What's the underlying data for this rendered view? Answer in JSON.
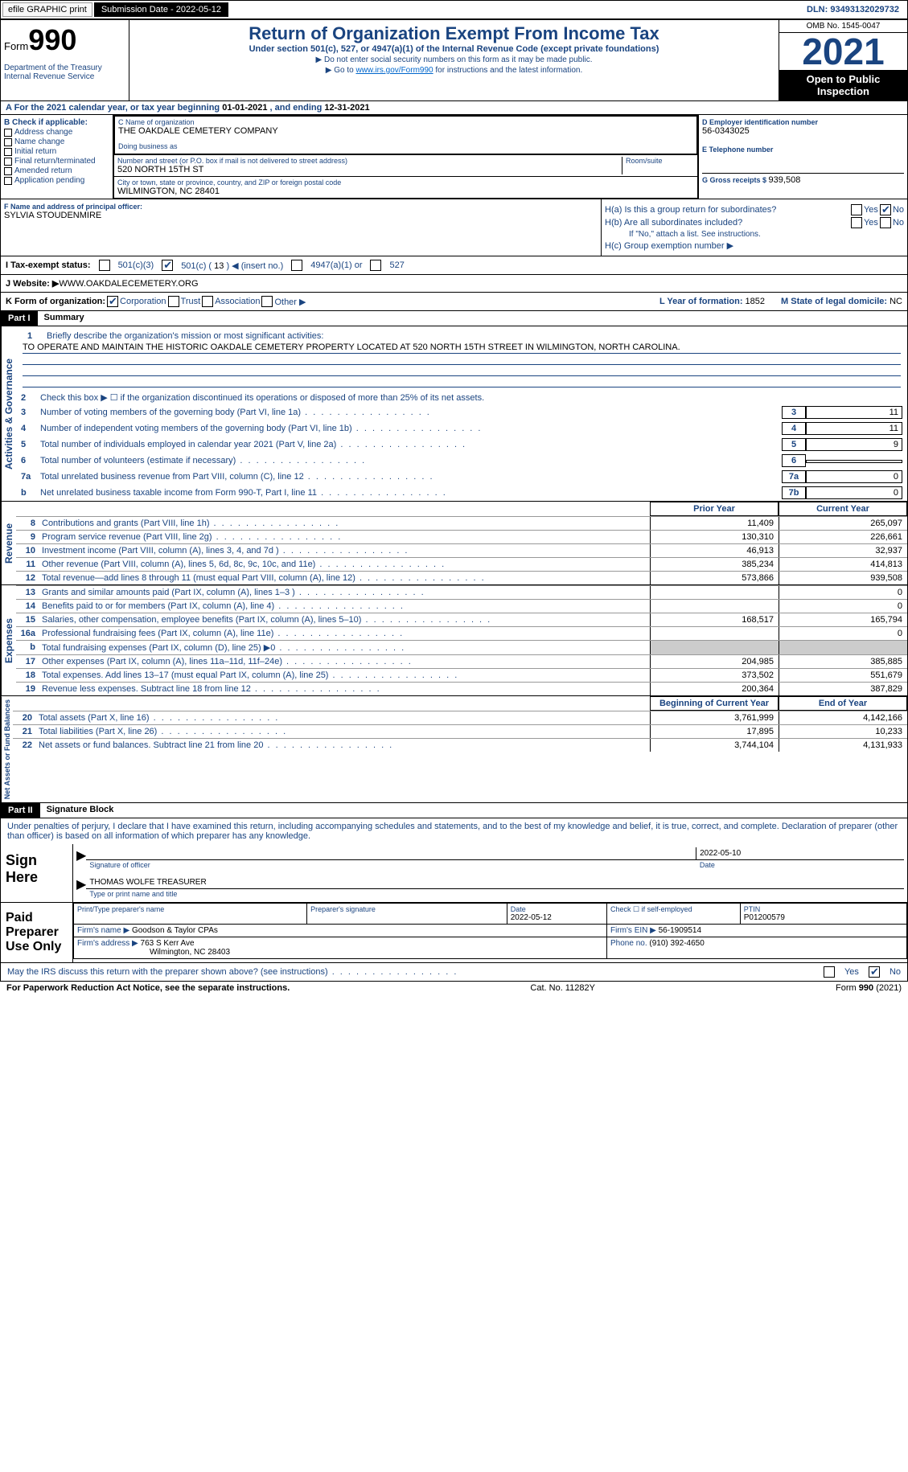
{
  "topbar": {
    "efile": "efile GRAPHIC print",
    "sub_label": "Submission Date - ",
    "sub_date": "2022-05-12",
    "dln_label": "DLN: ",
    "dln": "93493132029732"
  },
  "header": {
    "form_prefix": "Form",
    "form_num": "990",
    "dept": "Department of the Treasury\nInternal Revenue Service",
    "title": "Return of Organization Exempt From Income Tax",
    "subtitle": "Under section 501(c), 527, or 4947(a)(1) of the Internal Revenue Code (except private foundations)",
    "note1": "▶ Do not enter social security numbers on this form as it may be made public.",
    "note2_pre": "▶ Go to ",
    "note2_link": "www.irs.gov/Form990",
    "note2_post": " for instructions and the latest information.",
    "omb": "OMB No. 1545-0047",
    "year": "2021",
    "inspection": "Open to Public Inspection"
  },
  "period": {
    "text_a": "A For the 2021 calendar year, or tax year beginning ",
    "begin": "01-01-2021",
    "text_b": " , and ending ",
    "end": "12-31-2021"
  },
  "sectionB": {
    "hdr": "B Check if applicable:",
    "items": [
      "Address change",
      "Name change",
      "Initial return",
      "Final return/terminated",
      "Amended return",
      "Application pending"
    ]
  },
  "sectionC": {
    "name_label": "C Name of organization",
    "name": "THE OAKDALE CEMETERY COMPANY",
    "dba_label": "Doing business as",
    "addr_label": "Number and street (or P.O. box if mail is not delivered to street address)",
    "room_label": "Room/suite",
    "addr": "520 NORTH 15TH ST",
    "city_label": "City or town, state or province, country, and ZIP or foreign postal code",
    "city": "WILMINGTON, NC  28401"
  },
  "sectionD": {
    "ein_label": "D Employer identification number",
    "ein": "56-0343025",
    "tel_label": "E Telephone number",
    "gross_label": "G Gross receipts $ ",
    "gross": "939,508"
  },
  "sectionF": {
    "label": "F  Name and address of principal officer:",
    "name": "SYLVIA STOUDENMIRE"
  },
  "sectionH": {
    "a_label": "H(a)  Is this a group return for subordinates?",
    "b_label": "H(b)  Are all subordinates included?",
    "note": "If \"No,\" attach a list. See instructions.",
    "c_label": "H(c)  Group exemption number ▶",
    "yes": "Yes",
    "no": "No"
  },
  "sectionI": {
    "label": "I    Tax-exempt status:",
    "opt1": "501(c)(3)",
    "opt2_pre": "501(c) ( ",
    "opt2_num": "13",
    "opt2_post": " ) ◀ (insert no.)",
    "opt3": "4947(a)(1) or",
    "opt4": "527"
  },
  "sectionJ": {
    "label": "J    Website: ▶",
    "url": "  WWW.OAKDALECEMETERY.ORG"
  },
  "sectionK": {
    "label": "K Form of organization:",
    "opts": [
      "Corporation",
      "Trust",
      "Association",
      "Other ▶"
    ],
    "l_label": "L Year of formation: ",
    "l_val": "1852",
    "m_label": "M State of legal domicile: ",
    "m_val": "NC"
  },
  "part1": {
    "header": "Part I",
    "title": "Summary",
    "side1": "Activities & Governance",
    "q1_label": "Briefly describe the organization's mission or most significant activities:",
    "q1_text": "TO OPERATE AND MAINTAIN THE HISTORIC OAKDALE CEMETERY PROPERTY LOCATED AT 520 NORTH 15TH STREET IN WILMINGTON, NORTH CAROLINA.",
    "q2": "Check this box ▶ ☐  if the organization discontinued its operations or disposed of more than 25% of its net assets.",
    "lines": [
      {
        "n": "3",
        "t": "Number of voting members of the governing body (Part VI, line 1a)",
        "b": "3",
        "v": "11"
      },
      {
        "n": "4",
        "t": "Number of independent voting members of the governing body (Part VI, line 1b)",
        "b": "4",
        "v": "11"
      },
      {
        "n": "5",
        "t": "Total number of individuals employed in calendar year 2021 (Part V, line 2a)",
        "b": "5",
        "v": "9"
      },
      {
        "n": "6",
        "t": "Total number of volunteers (estimate if necessary)",
        "b": "6",
        "v": ""
      },
      {
        "n": "7a",
        "t": "Total unrelated business revenue from Part VIII, column (C), line 12",
        "b": "7a",
        "v": "0"
      },
      {
        "n": "b",
        "t": "Net unrelated business taxable income from Form 990-T, Part I, line 11",
        "b": "7b",
        "v": "0"
      }
    ],
    "colhdr_prior": "Prior Year",
    "colhdr_current": "Current Year",
    "side2": "Revenue",
    "revenue": [
      {
        "n": "8",
        "t": "Contributions and grants (Part VIII, line 1h)",
        "p": "11,409",
        "c": "265,097"
      },
      {
        "n": "9",
        "t": "Program service revenue (Part VIII, line 2g)",
        "p": "130,310",
        "c": "226,661"
      },
      {
        "n": "10",
        "t": "Investment income (Part VIII, column (A), lines 3, 4, and 7d )",
        "p": "46,913",
        "c": "32,937"
      },
      {
        "n": "11",
        "t": "Other revenue (Part VIII, column (A), lines 5, 6d, 8c, 9c, 10c, and 11e)",
        "p": "385,234",
        "c": "414,813"
      },
      {
        "n": "12",
        "t": "Total revenue—add lines 8 through 11 (must equal Part VIII, column (A), line 12)",
        "p": "573,866",
        "c": "939,508"
      }
    ],
    "side3": "Expenses",
    "expenses": [
      {
        "n": "13",
        "t": "Grants and similar amounts paid (Part IX, column (A), lines 1–3 )",
        "p": "",
        "c": "0"
      },
      {
        "n": "14",
        "t": "Benefits paid to or for members (Part IX, column (A), line 4)",
        "p": "",
        "c": "0"
      },
      {
        "n": "15",
        "t": "Salaries, other compensation, employee benefits (Part IX, column (A), lines 5–10)",
        "p": "168,517",
        "c": "165,794"
      },
      {
        "n": "16a",
        "t": "Professional fundraising fees (Part IX, column (A), line 11e)",
        "p": "",
        "c": "0"
      },
      {
        "n": "b",
        "t": "Total fundraising expenses (Part IX, column (D), line 25) ▶0",
        "p": "grey",
        "c": "grey"
      },
      {
        "n": "17",
        "t": "Other expenses (Part IX, column (A), lines 11a–11d, 11f–24e)",
        "p": "204,985",
        "c": "385,885"
      },
      {
        "n": "18",
        "t": "Total expenses. Add lines 13–17 (must equal Part IX, column (A), line 25)",
        "p": "373,502",
        "c": "551,679"
      },
      {
        "n": "19",
        "t": "Revenue less expenses. Subtract line 18 from line 12",
        "p": "200,364",
        "c": "387,829"
      }
    ],
    "side4": "Net Assets or Fund Balances",
    "colhdr_begin": "Beginning of Current Year",
    "colhdr_end": "End of Year",
    "netassets": [
      {
        "n": "20",
        "t": "Total assets (Part X, line 16)",
        "p": "3,761,999",
        "c": "4,142,166"
      },
      {
        "n": "21",
        "t": "Total liabilities (Part X, line 26)",
        "p": "17,895",
        "c": "10,233"
      },
      {
        "n": "22",
        "t": "Net assets or fund balances. Subtract line 21 from line 20",
        "p": "3,744,104",
        "c": "4,131,933"
      }
    ]
  },
  "part2": {
    "header": "Part II",
    "title": "Signature Block",
    "intro": "Under penalties of perjury, I declare that I have examined this return, including accompanying schedules and statements, and to the best of my knowledge and belief, it is true, correct, and complete. Declaration of preparer (other than officer) is based on all information of which preparer has any knowledge.",
    "sign_here": "Sign Here",
    "sig_officer": "Signature of officer",
    "sig_date": "2022-05-10",
    "date_label": "Date",
    "officer_name": "THOMAS WOLFE  TREASURER",
    "name_label": "Type or print name and title",
    "paid_prep": "Paid Preparer Use Only",
    "prep_name_label": "Print/Type preparer's name",
    "prep_sig_label": "Preparer's signature",
    "prep_date_label": "Date",
    "prep_date": "2022-05-12",
    "check_label": "Check ☐ if self-employed",
    "ptin_label": "PTIN",
    "ptin": "P01200579",
    "firm_name_label": "Firm's name    ▶ ",
    "firm_name": "Goodson & Taylor CPAs",
    "firm_ein_label": "Firm's EIN ▶ ",
    "firm_ein": "56-1909514",
    "firm_addr_label": "Firm's address ▶ ",
    "firm_addr": "763 S Kerr Ave",
    "firm_city": "Wilmington, NC  28403",
    "phone_label": "Phone no. ",
    "phone": "(910) 392-4650",
    "irs_discuss": "May the IRS discuss this return with the preparer shown above? (see instructions)",
    "yes": "Yes",
    "no": "No"
  },
  "footer": {
    "paperwork": "For Paperwork Reduction Act Notice, see the separate instructions.",
    "cat": "Cat. No. 11282Y",
    "form": "Form 990 (2021)"
  }
}
